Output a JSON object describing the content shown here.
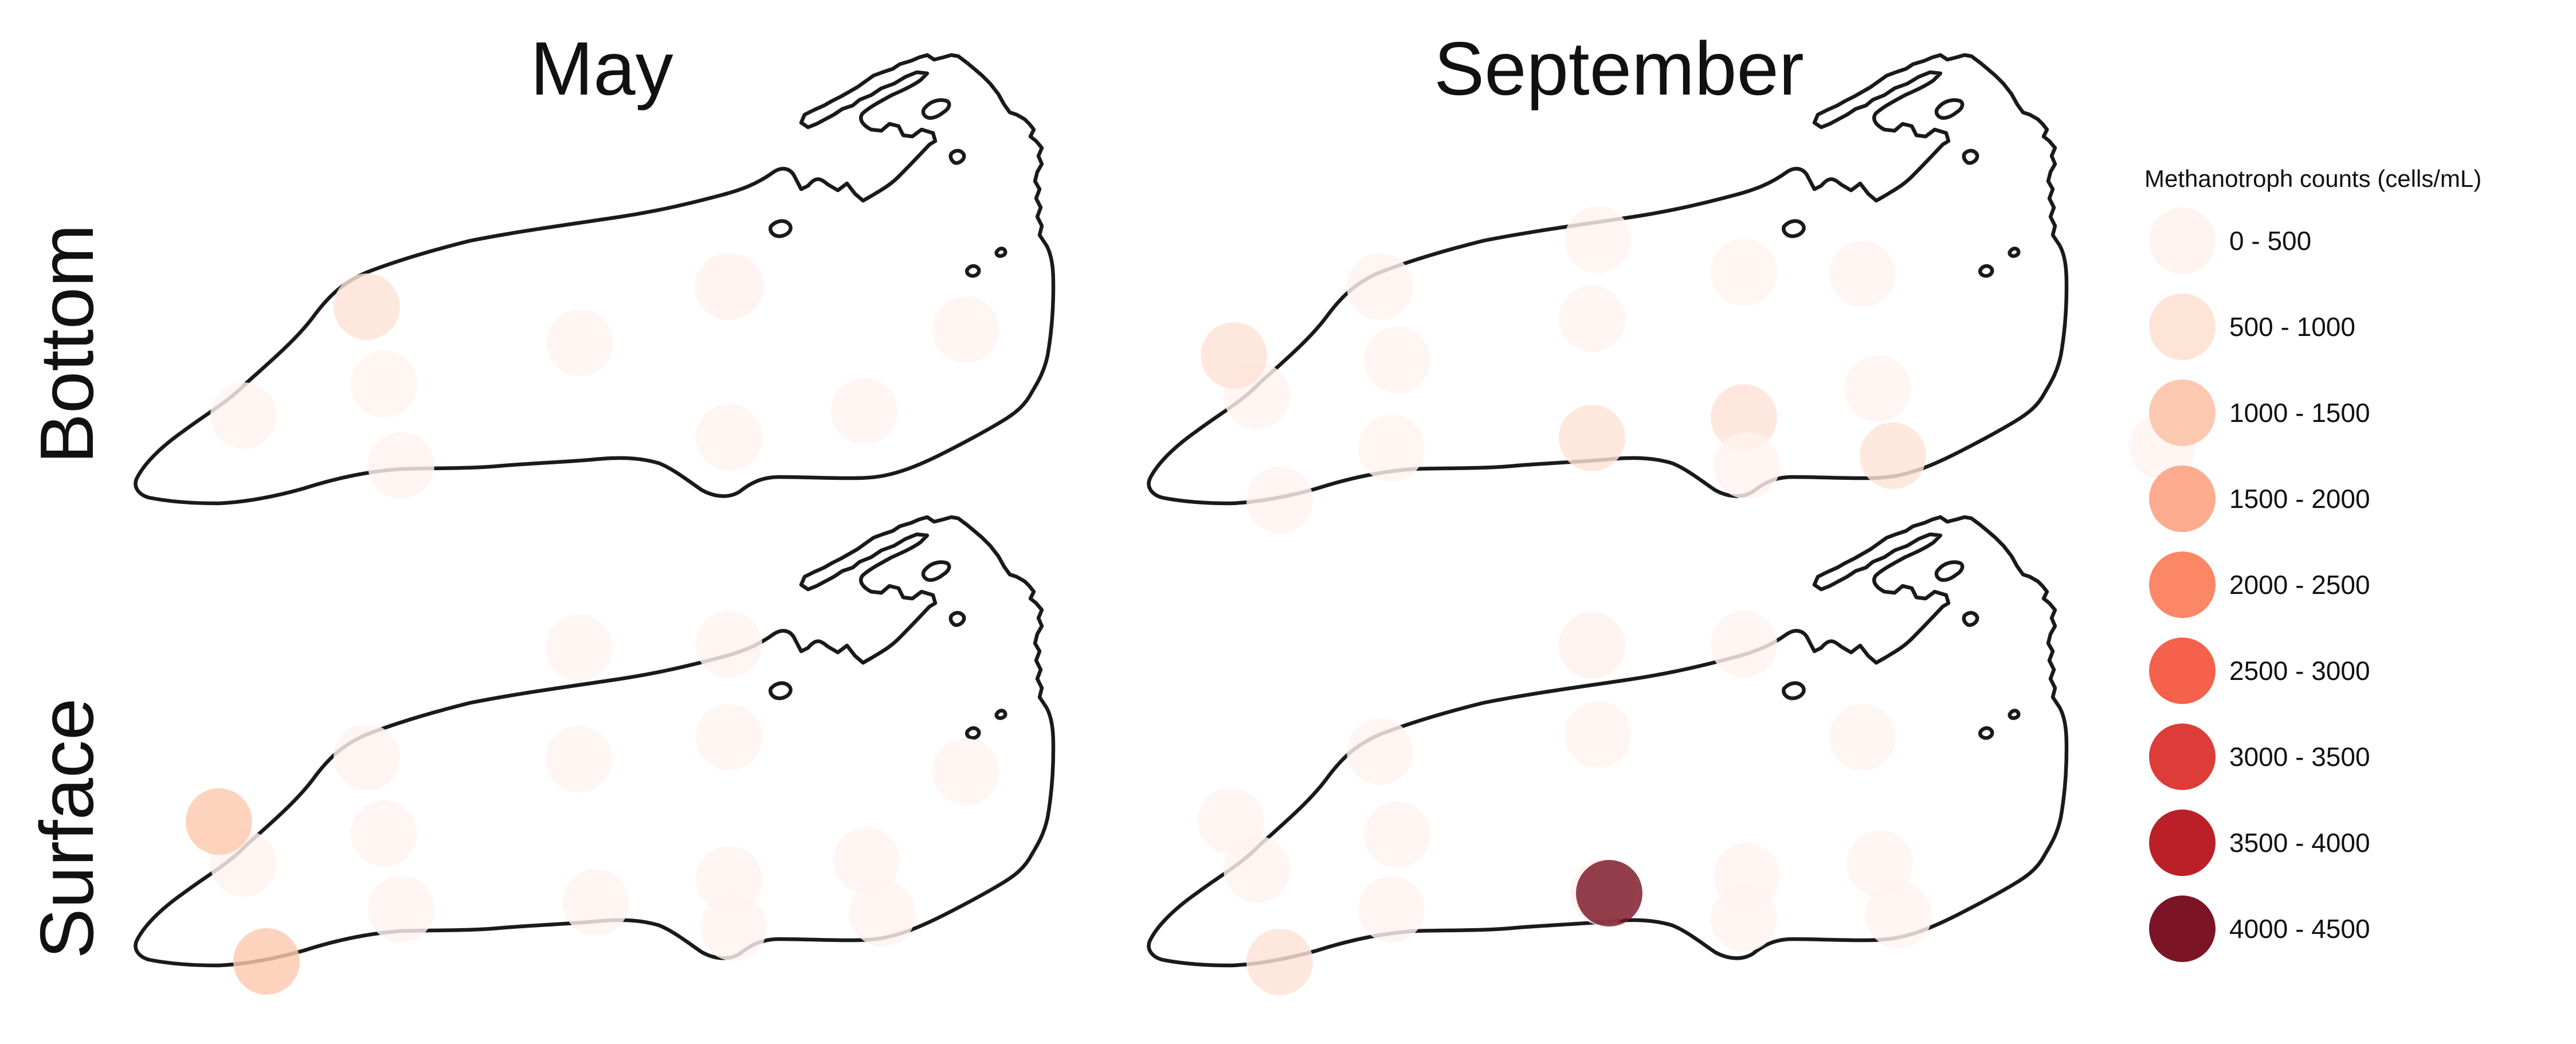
{
  "columns": [
    "May",
    "September"
  ],
  "rows": [
    "Bottom",
    "Surface"
  ],
  "legend": {
    "title": "Methanotroph counts (cells/mL)",
    "bins": [
      {
        "label": "0 - 500",
        "color": "#fff3ef"
      },
      {
        "label": "500 - 1000",
        "color": "#fee3d7"
      },
      {
        "label": "1000 - 1500",
        "color": "#fcc9b0"
      },
      {
        "label": "1500 - 2000",
        "color": "#fcab8f"
      },
      {
        "label": "2000 - 2500",
        "color": "#fb8767"
      },
      {
        "label": "2500 - 3000",
        "color": "#f5614a"
      },
      {
        "label": "3000 - 3500",
        "color": "#de3c38"
      },
      {
        "label": "3500 - 4000",
        "color": "#bb2028"
      },
      {
        "label": "4000 - 4500",
        "color": "#7b1526"
      }
    ]
  },
  "panels": [
    {
      "month": "May",
      "depth": "Bottom",
      "stations": [
        {
          "bin": 1
        },
        {
          "bin": 0
        },
        {
          "bin": 0
        },
        {
          "bin": 0
        },
        {
          "bin": 0
        },
        {
          "bin": 0
        },
        {
          "bin": 0
        },
        {
          "bin": 0
        },
        {
          "bin": 0
        },
        {
          "bin": 0
        }
      ]
    },
    {
      "month": "September",
      "depth": "Bottom",
      "stations": [
        {
          "bin": 0
        },
        {
          "bin": 0
        },
        {
          "bin": 0
        },
        {
          "bin": 0
        },
        {
          "bin": 0
        },
        {
          "bin": 1
        },
        {
          "bin": 0
        },
        {
          "bin": 0
        },
        {
          "bin": 0
        },
        {
          "bin": 1
        },
        {
          "bin": 0
        },
        {
          "bin": 1
        },
        {
          "bin": 0
        },
        {
          "bin": 0
        },
        {
          "bin": 0
        },
        {
          "bin": 1
        }
      ]
    },
    {
      "month": "May",
      "depth": "Surface",
      "stations": [
        {
          "bin": 0
        },
        {
          "bin": 0
        },
        {
          "bin": 0
        },
        {
          "bin": 0
        },
        {
          "bin": 0
        },
        {
          "bin": 0
        },
        {
          "bin": 0
        },
        {
          "bin": 2
        },
        {
          "bin": 0
        },
        {
          "bin": 0
        },
        {
          "bin": 0
        },
        {
          "bin": 0
        },
        {
          "bin": 2
        },
        {
          "bin": 0
        },
        {
          "bin": 0
        },
        {
          "bin": 0
        }
      ]
    },
    {
      "month": "September",
      "depth": "Surface",
      "stations": [
        {
          "bin": 0
        },
        {
          "bin": 0
        },
        {
          "bin": 0
        },
        {
          "bin": 0
        },
        {
          "bin": 0
        },
        {
          "bin": 0
        },
        {
          "bin": 0
        },
        {
          "bin": 0
        },
        {
          "bin": 0
        },
        {
          "bin": 0
        },
        {
          "bin": 0
        },
        {
          "bin": 0
        },
        {
          "bin": 0
        },
        {
          "bin": 0
        },
        {
          "bin": 8
        },
        {
          "bin": 0
        },
        {
          "bin": 1
        }
      ]
    }
  ]
}
